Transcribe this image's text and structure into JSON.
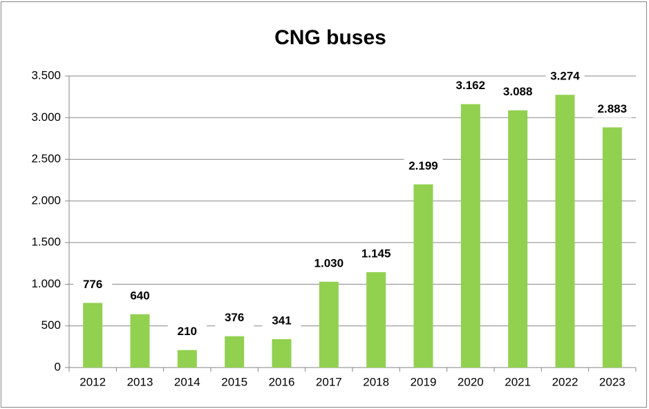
{
  "chart_data": {
    "type": "bar",
    "title": "CNG buses",
    "categories": [
      "2012",
      "2013",
      "2014",
      "2015",
      "2016",
      "2017",
      "2018",
      "2019",
      "2020",
      "2021",
      "2022",
      "2023"
    ],
    "values": [
      776,
      640,
      210,
      376,
      341,
      1030,
      1145,
      2199,
      3162,
      3088,
      3274,
      2883
    ],
    "value_labels": [
      "776",
      "640",
      "210",
      "376",
      "341",
      "1.030",
      "1.145",
      "2.199",
      "3.162",
      "3.088",
      "3.274",
      "2.883"
    ],
    "color": "#92d050",
    "ylim": [
      0,
      3500
    ],
    "yticks": [
      0,
      500,
      {
        "value": 1000,
        "label": "1.000"
      },
      {
        "value": 1500,
        "label": "1.500"
      },
      {
        "value": 2000,
        "label": "2.000"
      },
      {
        "value": 2500,
        "label": "2.500"
      },
      {
        "value": 3000,
        "label": "3.000"
      },
      {
        "value": 3500,
        "label": "3.500"
      }
    ],
    "grid": true
  }
}
